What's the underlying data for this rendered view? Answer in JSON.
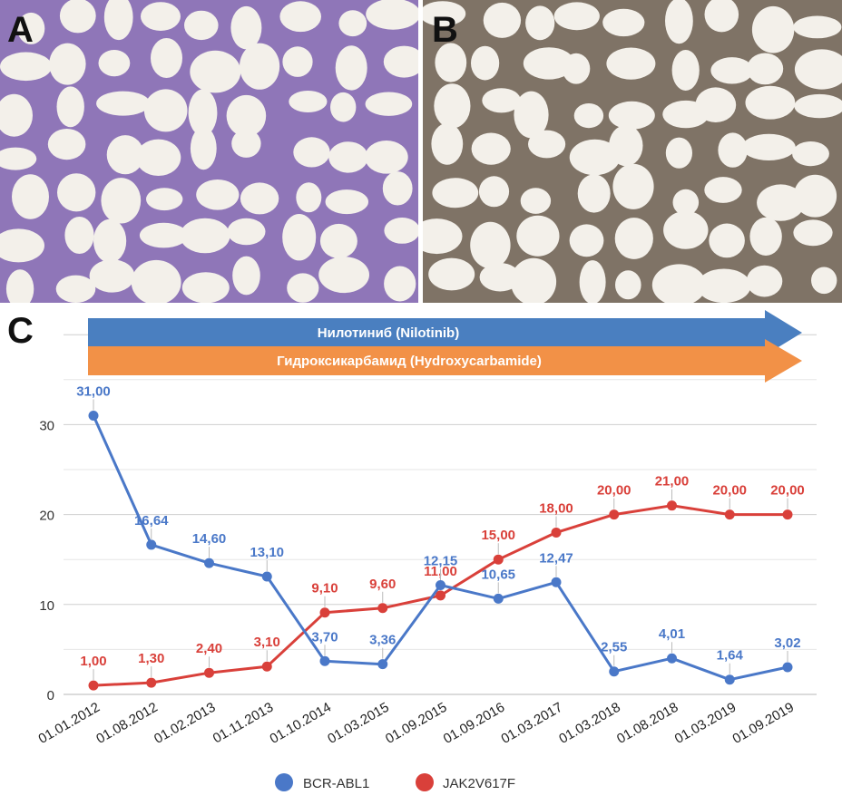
{
  "panels": {
    "a_label": "A",
    "b_label": "B",
    "c_label": "C"
  },
  "colors": {
    "bcr": "#4a78c8",
    "jak": "#d9403a",
    "nilotinib_arrow": "#4a7fc0",
    "hydroxy_arrow": "#f29147",
    "he_stain": "#8f76b8",
    "ihc_stain": "#7f7366",
    "fat_cell": "#f3f0ea"
  },
  "treatments": {
    "nilotinib": "Нилотиниб (Nilotinib)",
    "hydroxycarbamide": "Гидроксикарбамид (Hydroxycarbamide)"
  },
  "legend": {
    "bcr": "BCR-ABL1",
    "jak": "JAK2V617F"
  },
  "chart_data": {
    "type": "line",
    "categories": [
      "01.01.2012",
      "01.08.2012",
      "01.02.2013",
      "01.11.2013",
      "01.10.2014",
      "01.03.2015",
      "01.09.2015",
      "01.09.2016",
      "01.03.2017",
      "01.03.2018",
      "01.08.2018",
      "01.03.2019",
      "01.09.2019"
    ],
    "series": [
      {
        "name": "BCR-ABL1",
        "color": "#4a78c8",
        "values": [
          31.0,
          16.64,
          14.6,
          13.1,
          3.7,
          3.36,
          12.15,
          10.65,
          12.47,
          2.55,
          4.01,
          1.64,
          3.02
        ],
        "labels": [
          "31,00",
          "16,64",
          "14,60",
          "13,10",
          "3,70",
          "3,36",
          "12,15",
          "10,65",
          "12,47",
          "2,55",
          "4,01",
          "1,64",
          "3,02"
        ]
      },
      {
        "name": "JAK2V617F",
        "color": "#d9403a",
        "values": [
          1.0,
          1.3,
          2.4,
          3.1,
          9.1,
          9.6,
          11.0,
          15.0,
          18.0,
          20.0,
          21.0,
          20.0,
          20.0
        ],
        "labels": [
          "1,00",
          "1,30",
          "2,40",
          "3,10",
          "9,10",
          "9,60",
          "11,00",
          "15,00",
          "18,00",
          "20,00",
          "21,00",
          "20,00",
          "20,00"
        ]
      }
    ],
    "yticks": [
      "0",
      "10",
      "20",
      "30"
    ],
    "ytick_values": [
      0,
      10,
      20,
      30
    ],
    "ylim": [
      0,
      40
    ],
    "grid": true,
    "legend_position": "bottom-center"
  }
}
